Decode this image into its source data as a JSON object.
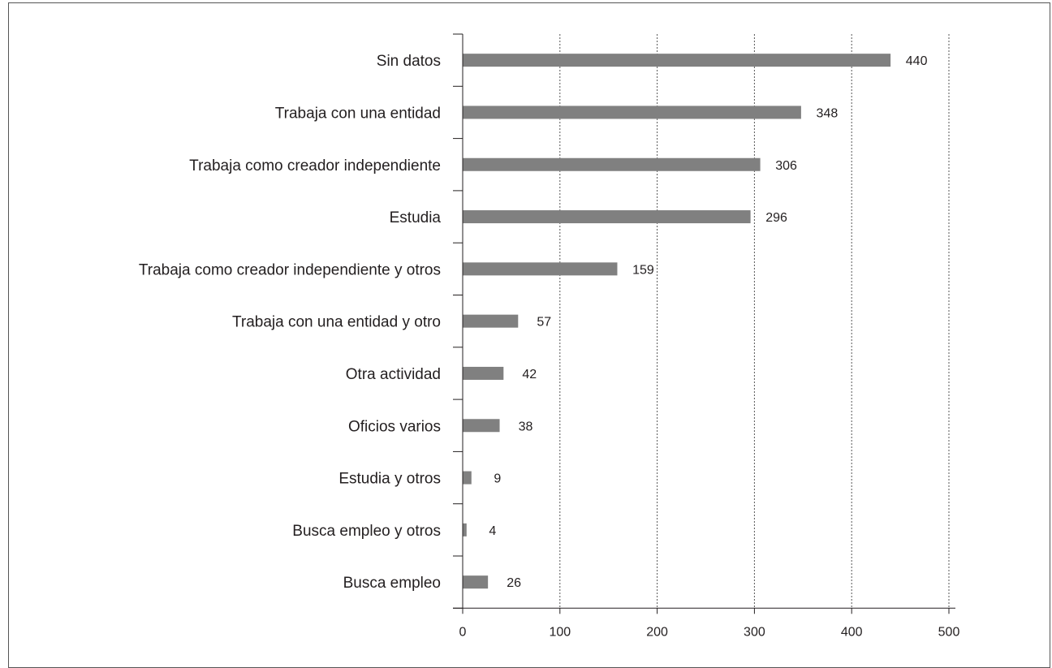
{
  "chart_data": {
    "type": "bar",
    "orientation": "horizontal",
    "title": "",
    "xlabel": "",
    "ylabel": "",
    "categories": [
      "Sin datos",
      "Trabaja con una entidad",
      "Trabaja como creador independiente",
      "Estudia",
      "Trabaja como creador independiente y otros",
      "Trabaja con una entidad y otro",
      "Otra actividad",
      "Oficios varios",
      "Estudia y otros",
      "Busca empleo y otros",
      "Busca empleo"
    ],
    "values": [
      440,
      348,
      306,
      296,
      159,
      57,
      42,
      38,
      9,
      4,
      26
    ],
    "data_labels": [
      "440",
      "348",
      "306",
      "296",
      "159",
      "57",
      "42",
      "38",
      "9",
      "4",
      "26"
    ],
    "xlim": [
      0,
      500
    ],
    "x_ticks": [
      "0",
      "100",
      "200",
      "300",
      "400",
      "500"
    ],
    "grid": "vertical dotted",
    "legend": "none",
    "colors": {
      "bar": "#808080",
      "axis": "#231f20",
      "grid": "#555555",
      "text": "#231f20"
    }
  }
}
